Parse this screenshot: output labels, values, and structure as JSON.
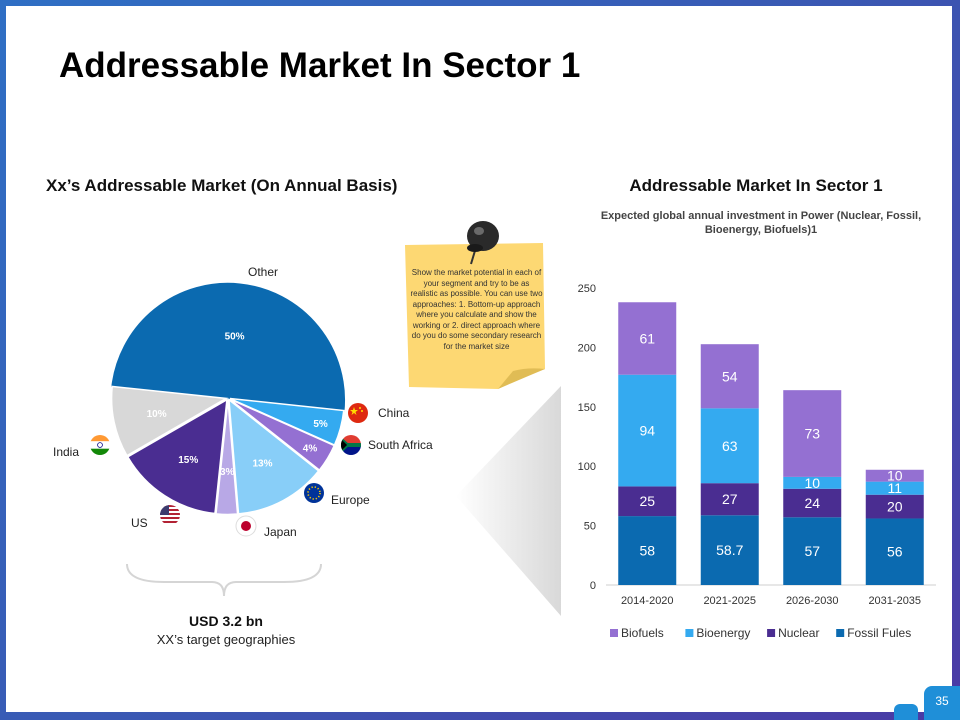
{
  "slide": {
    "title": "Addressable Market In Sector 1",
    "page_number": "35"
  },
  "left": {
    "heading": "Xx’s Addressable Market (On Annual Basis)",
    "market_value": "USD 3.2 bn",
    "market_label": "XX’s  target geographies",
    "geographies": [
      {
        "name": "Other",
        "flag": "none"
      },
      {
        "name": "China",
        "flag": "china-flag-icon"
      },
      {
        "name": "South Africa",
        "flag": "south-africa-flag-icon"
      },
      {
        "name": "Europe",
        "flag": "eu-flag-icon"
      },
      {
        "name": "Japan",
        "flag": "japan-flag-icon"
      },
      {
        "name": "US",
        "flag": "us-flag-icon"
      },
      {
        "name": "India",
        "flag": "india-flag-icon"
      }
    ]
  },
  "note": {
    "text": "Show the market potential in each of your segment and try to be as realistic as possible. You can use two approaches: 1. Bottom-up approach where you calculate and show the working or 2. direct approach where do you do some secondary research for the market size"
  },
  "right": {
    "heading": "Addressable Market In Sector 1",
    "subtitle": "Expected global annual investment in Power (Nuclear, Fossil, Bioenergy, Biofuels)1"
  },
  "colors": {
    "fossil": "#0b6ab0",
    "nuclear": "#4a2d91",
    "bioenergy": "#34aaf0",
    "biofuels": "#9470d2",
    "other": "#0b6ab0",
    "china": "#34aaf0",
    "south_africa": "#9470d2",
    "europe": "#88cef8",
    "japan": "#b8a8e6",
    "us": "#4a2d91",
    "india": "#d8d8d8",
    "note": "#fdd873"
  },
  "chart_data": [
    {
      "type": "pie",
      "title": "Xx’s Addressable Market (On Annual Basis)",
      "labels": [
        "Other",
        "China",
        "South Africa",
        "Europe",
        "Japan",
        "US",
        "India"
      ],
      "values": [
        50,
        5,
        4,
        13,
        3,
        15,
        10
      ],
      "value_labels": [
        "50%",
        "5%",
        "4%",
        "13%",
        "3%",
        "15%",
        "10%"
      ]
    },
    {
      "type": "bar",
      "stacked": true,
      "title": "Addressable Market In Sector 1",
      "subtitle": "Expected global annual investment in Power (Nuclear, Fossil, Bioenergy, Biofuels)1",
      "categories": [
        "2014-2020",
        "2021-2025",
        "2026-2030",
        "2031-2035"
      ],
      "series": [
        {
          "name": "Fossil Fules",
          "values": [
            58,
            58.7,
            57,
            56
          ],
          "labels": [
            "58",
            "58.7",
            "57",
            "56"
          ]
        },
        {
          "name": "Nuclear",
          "values": [
            25,
            27,
            24,
            20
          ],
          "labels": [
            "25",
            "27",
            "24",
            "20"
          ]
        },
        {
          "name": "Bioenergy",
          "values": [
            94,
            63,
            10,
            11
          ],
          "labels": [
            "94",
            "63",
            "10",
            "11"
          ]
        },
        {
          "name": "Biofuels",
          "values": [
            61,
            54,
            73,
            10
          ],
          "labels": [
            "61",
            "54",
            "73",
            "10"
          ]
        }
      ],
      "legend_order": [
        "Biofuels",
        "Bioenergy",
        "Nuclear",
        "Fossil Fules"
      ],
      "ylim": [
        0,
        250
      ],
      "yticks": [
        "0",
        "50",
        "100",
        "150",
        "200",
        "250"
      ],
      "legend_position": "bottom"
    }
  ]
}
